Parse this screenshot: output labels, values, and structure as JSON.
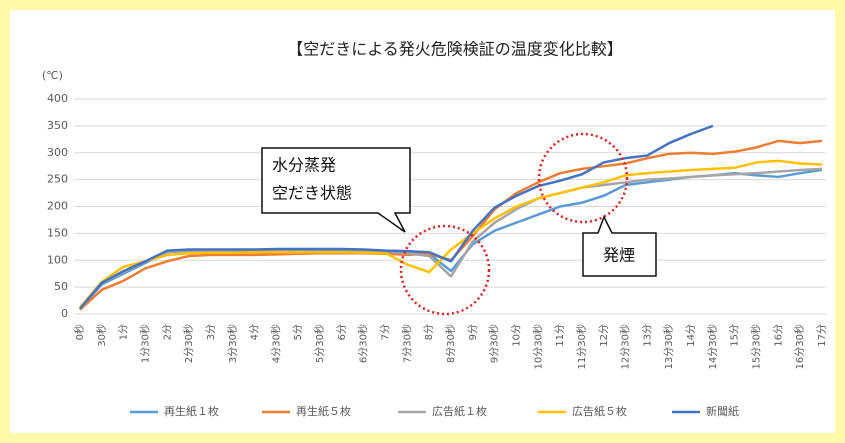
{
  "chart_data": {
    "type": "line",
    "title": "【空だきによる発火危険検証の温度変化比較】",
    "y_unit": "(℃)",
    "categories": [
      "0秒",
      "30秒",
      "1分",
      "1分30秒",
      "2分",
      "2分30秒",
      "3分",
      "3分30秒",
      "4分",
      "4分30秒",
      "5分",
      "5分30秒",
      "6分",
      "6分30秒",
      "7分",
      "7分30秒",
      "8分",
      "8分30秒",
      "9分",
      "9分30秒",
      "10分",
      "10分30秒",
      "11分",
      "11分30秒",
      "12分",
      "12分30秒",
      "13分",
      "13分30秒",
      "14分",
      "14分30秒",
      "15分",
      "15分30秒",
      "16分",
      "16分30秒",
      "17分"
    ],
    "series": [
      {
        "name": "再生紙１枚",
        "color": "#5b9bd5",
        "values": [
          10,
          55,
          75,
          95,
          115,
          118,
          118,
          118,
          118,
          118,
          119,
          119,
          119,
          118,
          116,
          115,
          112,
          80,
          130,
          155,
          170,
          185,
          200,
          207,
          220,
          240,
          245,
          250,
          255,
          258,
          262,
          258,
          255,
          262,
          268
        ]
      },
      {
        "name": "再生紙５枚",
        "color": "#ed7d31",
        "values": [
          8,
          45,
          62,
          85,
          98,
          108,
          110,
          110,
          110,
          111,
          112,
          113,
          113,
          113,
          112,
          110,
          112,
          100,
          145,
          195,
          225,
          245,
          262,
          270,
          275,
          280,
          290,
          298,
          300,
          298,
          302,
          310,
          322,
          318,
          322
        ]
      },
      {
        "name": "広告紙１枚",
        "color": "#a5a5a5",
        "values": [
          10,
          58,
          78,
          98,
          115,
          118,
          119,
          119,
          119,
          119,
          120,
          120,
          120,
          118,
          116,
          113,
          108,
          70,
          135,
          170,
          195,
          215,
          225,
          235,
          240,
          245,
          250,
          252,
          255,
          258,
          260,
          262,
          265,
          268,
          270
        ]
      },
      {
        "name": "広告紙５枚",
        "color": "#ffc000",
        "values": [
          12,
          60,
          88,
          98,
          110,
          113,
          114,
          114,
          115,
          115,
          115,
          115,
          115,
          114,
          113,
          92,
          78,
          120,
          150,
          178,
          200,
          215,
          225,
          235,
          245,
          258,
          262,
          265,
          268,
          270,
          272,
          282,
          285,
          280,
          278
        ]
      },
      {
        "name": "新聞紙",
        "color": "#4472c4",
        "values": [
          10,
          58,
          80,
          98,
          118,
          120,
          120,
          120,
          120,
          121,
          121,
          121,
          121,
          120,
          118,
          117,
          115,
          98,
          155,
          198,
          220,
          238,
          248,
          260,
          282,
          290,
          295,
          318,
          335,
          350,
          null,
          null,
          null,
          null,
          null
        ]
      }
    ],
    "ylim": [
      0,
      400
    ],
    "yticks": [
      0,
      50,
      100,
      150,
      200,
      250,
      300,
      350,
      400
    ],
    "grid": true,
    "legend": "bottom",
    "annotations": [
      {
        "lines": [
          "水分蒸発",
          "空だき状態"
        ]
      },
      {
        "lines": [
          "発煙"
        ]
      }
    ]
  }
}
